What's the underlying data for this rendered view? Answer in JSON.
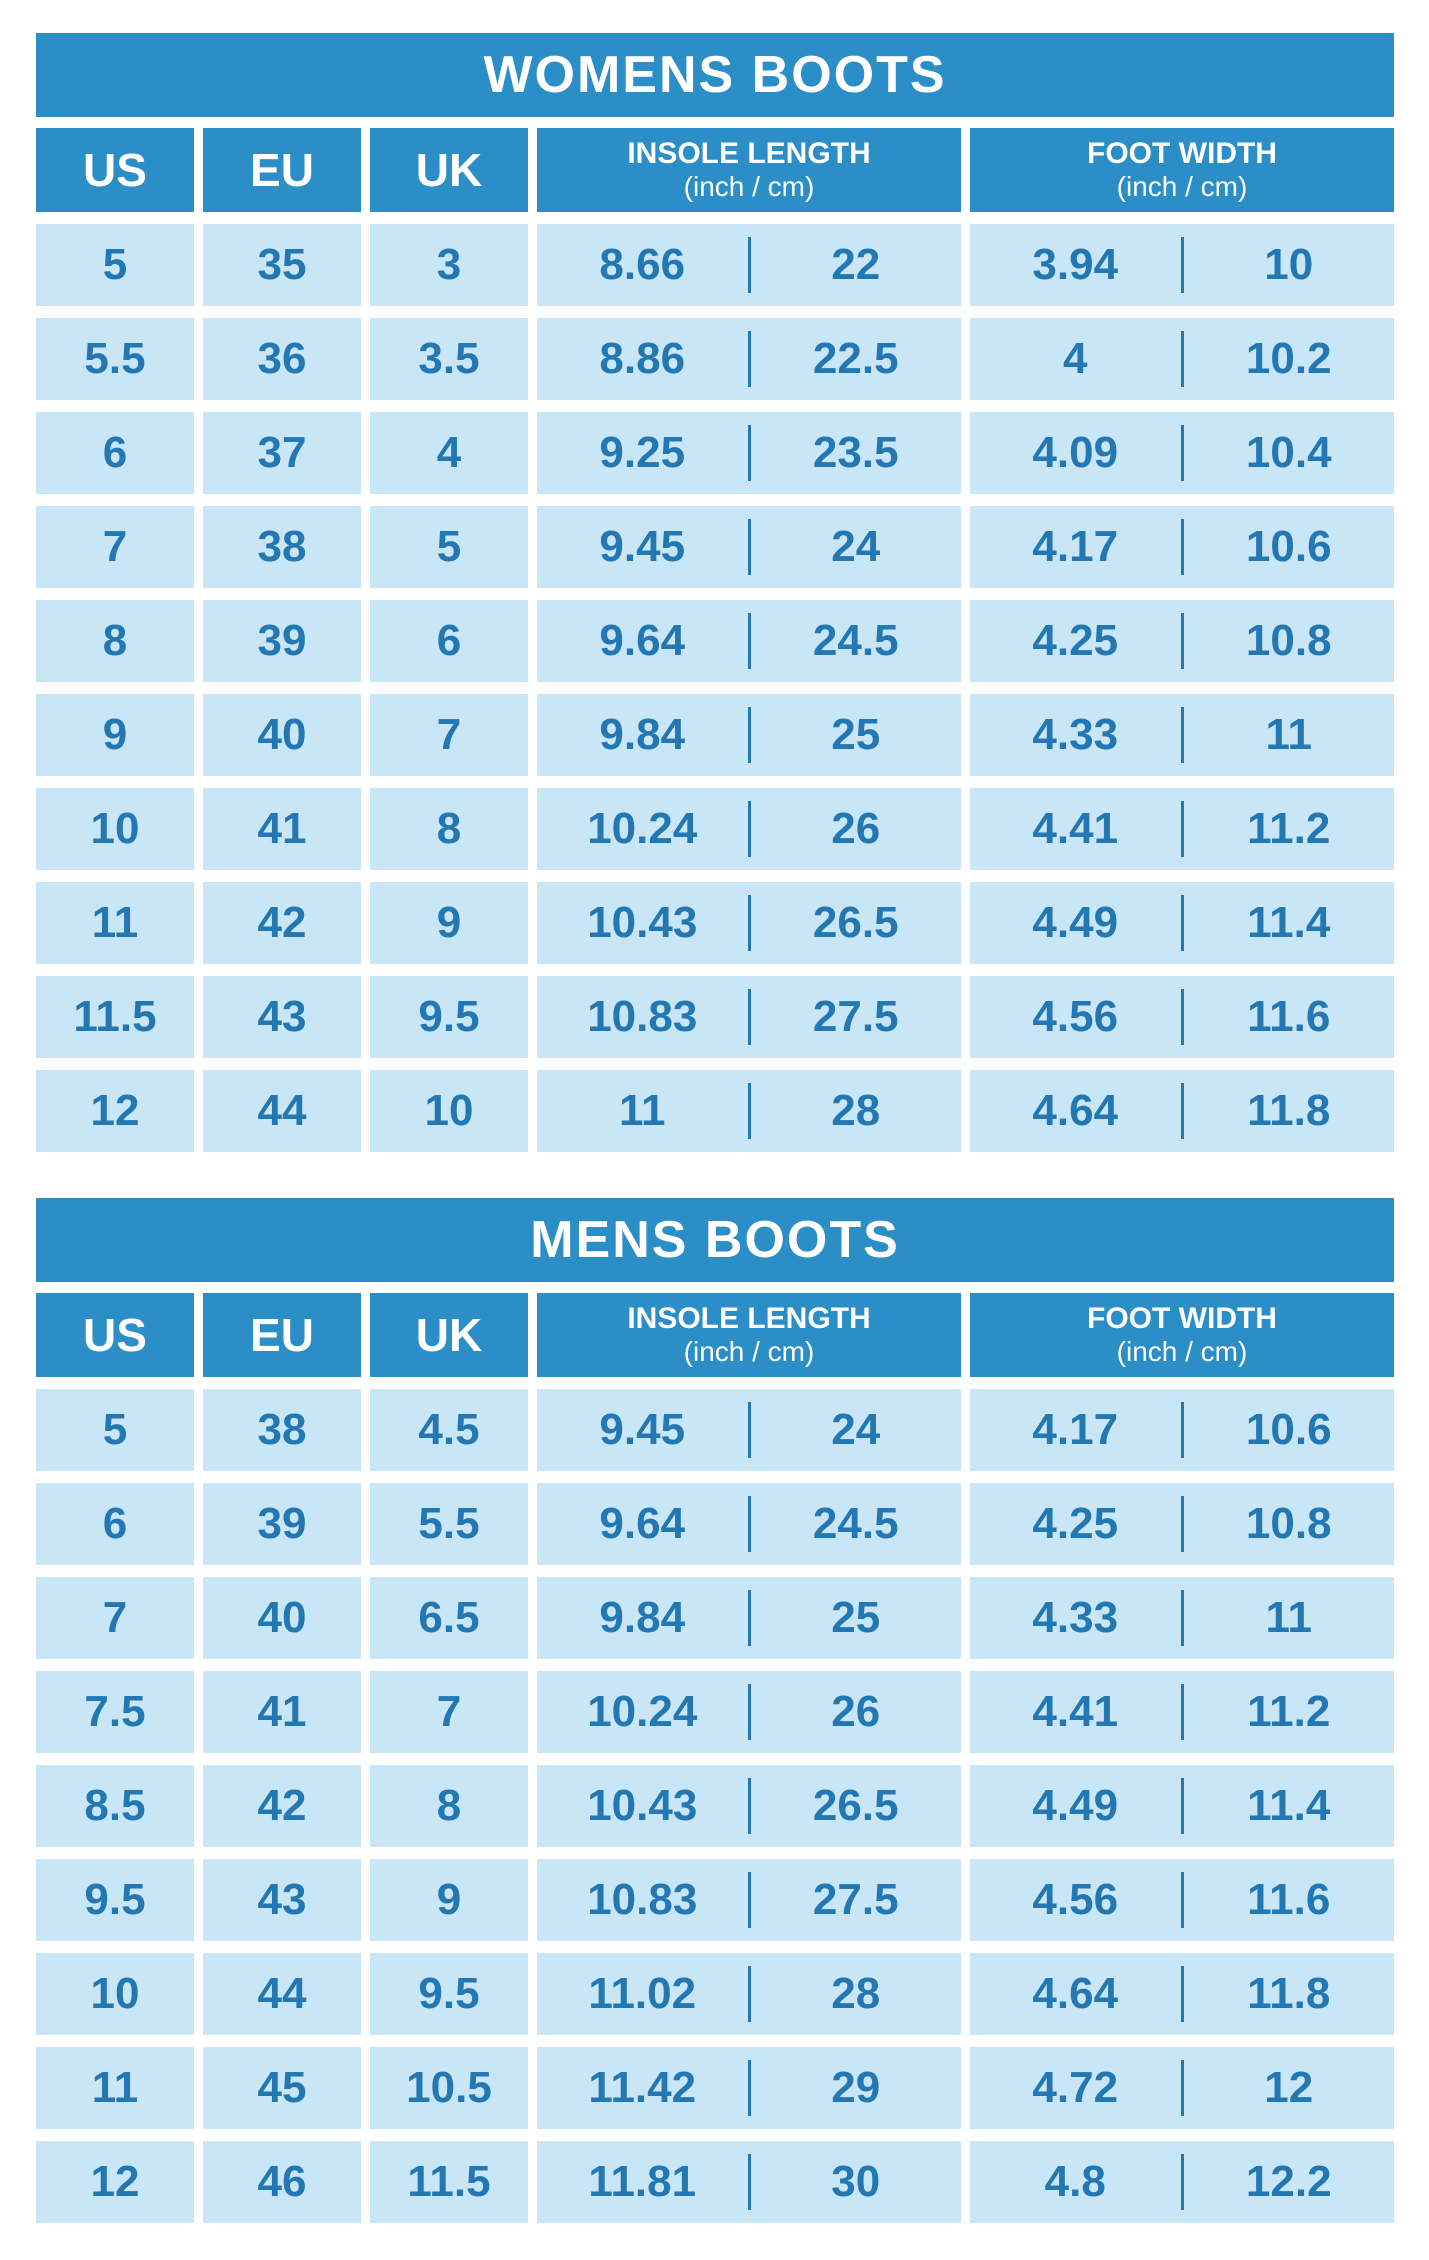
{
  "colors": {
    "header_bg": "#2b8ec7",
    "cell_bg": "#c9e6f7",
    "value_text": "#2377b2",
    "header_text": "#ffffff",
    "page_bg": "#ffffff",
    "divider": "#2377b2"
  },
  "chart_data": [
    {
      "type": "table",
      "title": "WOMENS BOOTS",
      "columns": [
        "US",
        "EU",
        "UK",
        {
          "label": "INSOLE LENGTH",
          "sub": "(inch / cm)"
        },
        {
          "label": "FOOT WIDTH",
          "sub": "(inch / cm)"
        }
      ],
      "column_keys": [
        "us",
        "eu",
        "uk",
        "insole_inch",
        "insole_cm",
        "width_inch",
        "width_cm"
      ],
      "rows": [
        [
          "5",
          "35",
          "3",
          "8.66",
          "22",
          "3.94",
          "10"
        ],
        [
          "5.5",
          "36",
          "3.5",
          "8.86",
          "22.5",
          "4",
          "10.2"
        ],
        [
          "6",
          "37",
          "4",
          "9.25",
          "23.5",
          "4.09",
          "10.4"
        ],
        [
          "7",
          "38",
          "5",
          "9.45",
          "24",
          "4.17",
          "10.6"
        ],
        [
          "8",
          "39",
          "6",
          "9.64",
          "24.5",
          "4.25",
          "10.8"
        ],
        [
          "9",
          "40",
          "7",
          "9.84",
          "25",
          "4.33",
          "11"
        ],
        [
          "10",
          "41",
          "8",
          "10.24",
          "26",
          "4.41",
          "11.2"
        ],
        [
          "11",
          "42",
          "9",
          "10.43",
          "26.5",
          "4.49",
          "11.4"
        ],
        [
          "11.5",
          "43",
          "9.5",
          "10.83",
          "27.5",
          "4.56",
          "11.6"
        ],
        [
          "12",
          "44",
          "10",
          "11",
          "28",
          "4.64",
          "11.8"
        ]
      ]
    },
    {
      "type": "table",
      "title": "MENS BOOTS",
      "columns": [
        "US",
        "EU",
        "UK",
        {
          "label": "INSOLE LENGTH",
          "sub": "(inch / cm)"
        },
        {
          "label": "FOOT WIDTH",
          "sub": "(inch / cm)"
        }
      ],
      "column_keys": [
        "us",
        "eu",
        "uk",
        "insole_inch",
        "insole_cm",
        "width_inch",
        "width_cm"
      ],
      "rows": [
        [
          "5",
          "38",
          "4.5",
          "9.45",
          "24",
          "4.17",
          "10.6"
        ],
        [
          "6",
          "39",
          "5.5",
          "9.64",
          "24.5",
          "4.25",
          "10.8"
        ],
        [
          "7",
          "40",
          "6.5",
          "9.84",
          "25",
          "4.33",
          "11"
        ],
        [
          "7.5",
          "41",
          "7",
          "10.24",
          "26",
          "4.41",
          "11.2"
        ],
        [
          "8.5",
          "42",
          "8",
          "10.43",
          "26.5",
          "4.49",
          "11.4"
        ],
        [
          "9.5",
          "43",
          "9",
          "10.83",
          "27.5",
          "4.56",
          "11.6"
        ],
        [
          "10",
          "44",
          "9.5",
          "11.02",
          "28",
          "4.64",
          "11.8"
        ],
        [
          "11",
          "45",
          "10.5",
          "11.42",
          "29",
          "4.72",
          "12"
        ],
        [
          "12",
          "46",
          "11.5",
          "11.81",
          "30",
          "4.8",
          "12.2"
        ]
      ]
    }
  ]
}
